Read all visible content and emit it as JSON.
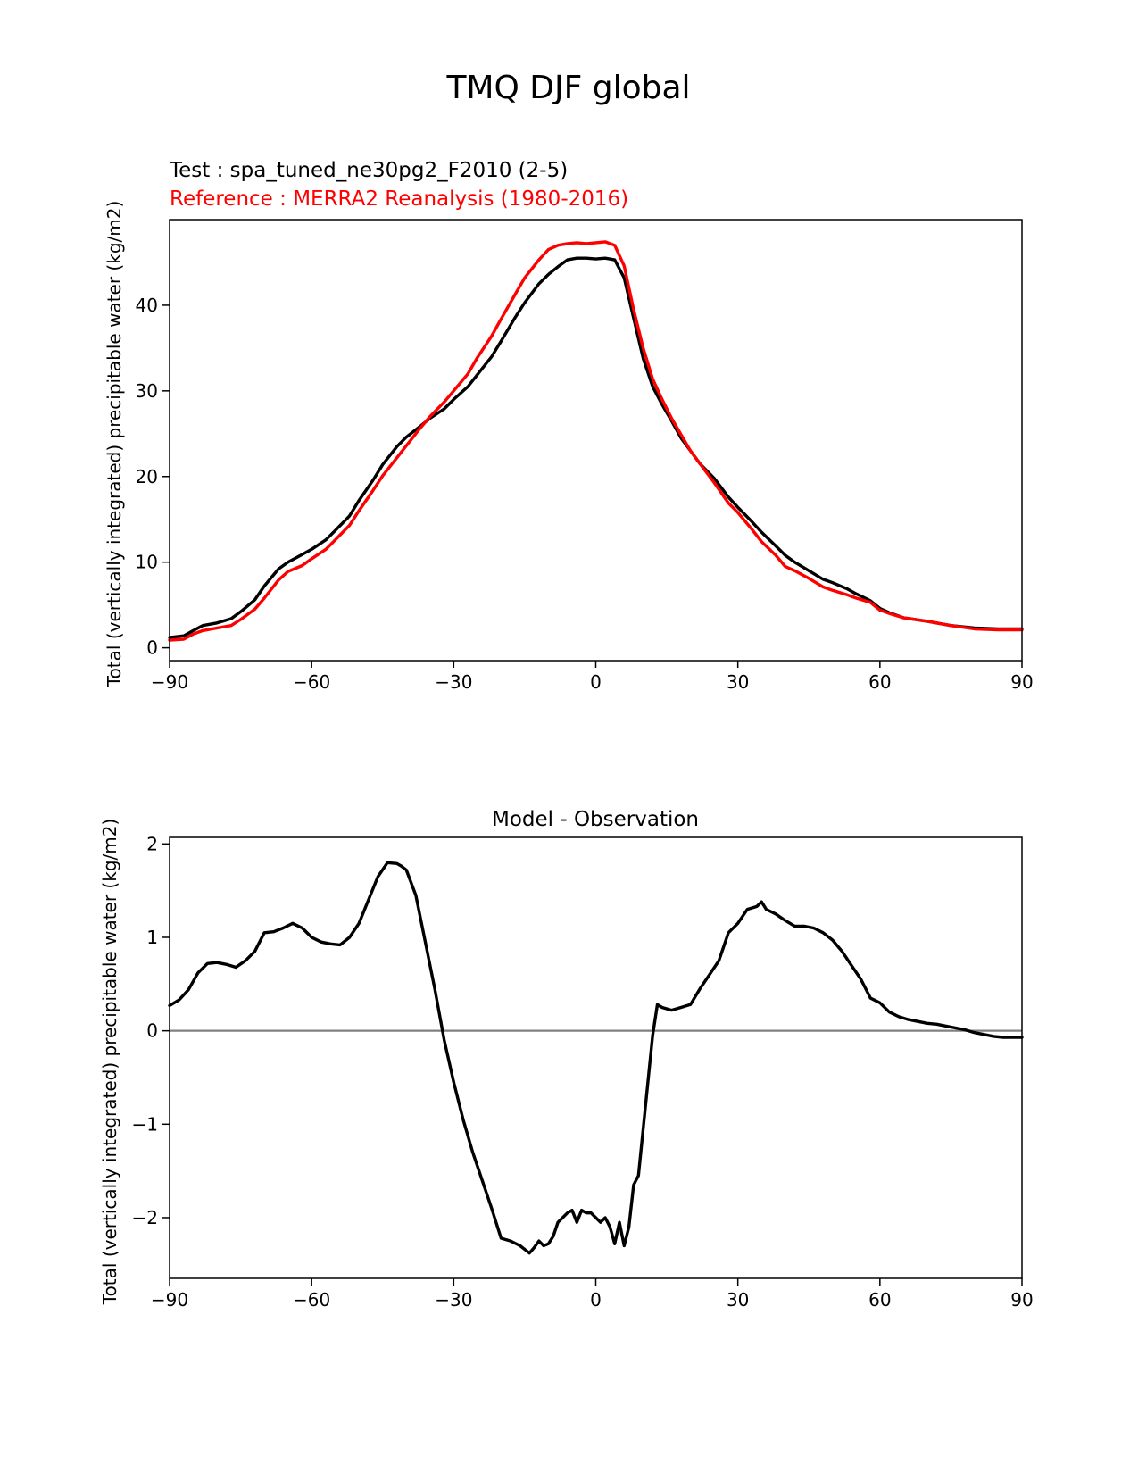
{
  "figure": {
    "title": "TMQ DJF global"
  },
  "chart_data": [
    {
      "type": "line",
      "title_test": "Test : spa_tuned_ne30pg2_F2010 (2-5)",
      "title_ref": "Reference : MERRA2 Reanalysis (1980-2016)",
      "ylabel": "Total (vertically integrated) precipitable water (kg/m2)",
      "xlim": [
        -90,
        90
      ],
      "ylim": [
        -1.5,
        50
      ],
      "xticks": [
        "−90",
        "−60",
        "−30",
        "0",
        "30",
        "60",
        "90"
      ],
      "xtick_values": [
        -90,
        -60,
        -30,
        0,
        30,
        60,
        90
      ],
      "yticks": [
        "0",
        "10",
        "20",
        "30",
        "40"
      ],
      "ytick_values": [
        0,
        10,
        20,
        30,
        40
      ],
      "colors": {
        "test": "#000000",
        "reference": "#ff0000"
      },
      "series": [
        {
          "role": "test",
          "x": [
            -90,
            -87,
            -85,
            -83,
            -80,
            -77,
            -75,
            -72,
            -70,
            -67,
            -65,
            -62,
            -60,
            -57,
            -55,
            -52,
            -50,
            -47,
            -45,
            -42,
            -40,
            -37,
            -35,
            -32,
            -30,
            -27,
            -25,
            -22,
            -20,
            -17,
            -15,
            -12,
            -10,
            -8,
            -6,
            -4,
            -2,
            0,
            2,
            4,
            6,
            8,
            10,
            12,
            14,
            16,
            18,
            20,
            22,
            25,
            28,
            30,
            33,
            35,
            38,
            40,
            42,
            45,
            48,
            50,
            53,
            55,
            58,
            60,
            62,
            65,
            70,
            75,
            80,
            85,
            90
          ],
          "y": [
            1.2,
            1.4,
            2.0,
            2.6,
            2.9,
            3.4,
            4.2,
            5.6,
            7.2,
            9.2,
            10.0,
            10.9,
            11.5,
            12.6,
            13.7,
            15.4,
            17.2,
            19.6,
            21.4,
            23.5,
            24.6,
            25.9,
            26.8,
            27.9,
            29.0,
            30.5,
            31.9,
            34.0,
            35.8,
            38.6,
            40.3,
            42.5,
            43.6,
            44.5,
            45.3,
            45.5,
            45.5,
            45.4,
            45.5,
            45.3,
            43.2,
            38.5,
            33.8,
            30.5,
            28.4,
            26.5,
            24.5,
            23.0,
            21.5,
            19.8,
            17.6,
            16.4,
            14.7,
            13.5,
            11.9,
            10.8,
            10.0,
            9.0,
            8.0,
            7.6,
            6.9,
            6.3,
            5.5,
            4.6,
            4.1,
            3.5,
            3.1,
            2.6,
            2.3,
            2.2,
            2.2
          ]
        },
        {
          "role": "reference",
          "x": [
            -90,
            -87,
            -85,
            -83,
            -80,
            -77,
            -75,
            -72,
            -70,
            -67,
            -65,
            -62,
            -60,
            -57,
            -55,
            -52,
            -50,
            -47,
            -45,
            -42,
            -40,
            -37,
            -35,
            -32,
            -30,
            -27,
            -25,
            -22,
            -20,
            -17,
            -15,
            -12,
            -10,
            -8,
            -6,
            -4,
            -2,
            0,
            2,
            4,
            6,
            8,
            10,
            12,
            14,
            16,
            18,
            20,
            22,
            25,
            28,
            30,
            33,
            35,
            38,
            40,
            42,
            45,
            48,
            50,
            53,
            55,
            58,
            60,
            62,
            65,
            70,
            75,
            80,
            85,
            90
          ],
          "y": [
            0.9,
            1.0,
            1.6,
            2.0,
            2.3,
            2.6,
            3.3,
            4.5,
            5.8,
            7.9,
            8.9,
            9.6,
            10.4,
            11.5,
            12.6,
            14.3,
            16.0,
            18.4,
            20.1,
            22.2,
            23.6,
            25.7,
            27.0,
            28.7,
            30.0,
            32.0,
            33.9,
            36.4,
            38.4,
            41.3,
            43.2,
            45.3,
            46.5,
            47.0,
            47.2,
            47.3,
            47.2,
            47.3,
            47.4,
            47.0,
            44.6,
            39.5,
            35.0,
            31.4,
            29.0,
            26.8,
            24.9,
            23.0,
            21.5,
            19.3,
            16.9,
            15.8,
            13.8,
            12.4,
            10.8,
            9.5,
            9.0,
            8.1,
            7.1,
            6.7,
            6.2,
            5.8,
            5.3,
            4.4,
            4.0,
            3.5,
            3.1,
            2.6,
            2.2,
            2.1,
            2.1
          ]
        }
      ]
    },
    {
      "type": "line",
      "title": "Model - Observation",
      "ylabel": "Total (vertically integrated) precipitable water (kg/m2)",
      "xlim": [
        -90,
        90
      ],
      "ylim": [
        -2.65,
        2.07
      ],
      "xticks": [
        "−90",
        "−60",
        "−30",
        "0",
        "30",
        "60",
        "90"
      ],
      "xtick_values": [
        -90,
        -60,
        -30,
        0,
        30,
        60,
        90
      ],
      "yticks": [
        "2",
        "1",
        "0",
        "−1",
        "−2"
      ],
      "ytick_values": [
        2,
        1,
        0,
        -1,
        -2
      ],
      "zero_line": 0,
      "colors": {
        "difference": "#000000",
        "zero_line": "#808080"
      },
      "series": [
        {
          "role": "difference",
          "x": [
            -90,
            -88,
            -86,
            -84,
            -82,
            -80,
            -78,
            -76,
            -74,
            -72,
            -70,
            -68,
            -66,
            -64,
            -62,
            -60,
            -58,
            -56,
            -54,
            -52,
            -50,
            -48,
            -46,
            -44,
            -42,
            -41,
            -40,
            -38,
            -36,
            -34,
            -32,
            -30,
            -28,
            -26,
            -24,
            -22,
            -20,
            -18,
            -16,
            -14,
            -13,
            -12,
            -11,
            -10,
            -9,
            -8,
            -7,
            -6,
            -5,
            -4,
            -3,
            -2,
            -1,
            0,
            1,
            2,
            3,
            4,
            5,
            6,
            7,
            8,
            9,
            10,
            11,
            12,
            13,
            14,
            16,
            18,
            20,
            22,
            24,
            26,
            28,
            30,
            32,
            34,
            35,
            36,
            38,
            40,
            42,
            44,
            46,
            48,
            50,
            52,
            54,
            56,
            58,
            60,
            62,
            64,
            66,
            68,
            70,
            72,
            74,
            76,
            78,
            80,
            82,
            84,
            86,
            88,
            90
          ],
          "y": [
            0.27,
            0.33,
            0.44,
            0.62,
            0.72,
            0.73,
            0.71,
            0.68,
            0.75,
            0.85,
            1.05,
            1.06,
            1.1,
            1.15,
            1.1,
            1.0,
            0.95,
            0.93,
            0.92,
            1.0,
            1.15,
            1.4,
            1.65,
            1.8,
            1.79,
            1.76,
            1.72,
            1.45,
            0.95,
            0.45,
            -0.1,
            -0.55,
            -0.95,
            -1.3,
            -1.6,
            -1.9,
            -2.22,
            -2.25,
            -2.3,
            -2.38,
            -2.32,
            -2.25,
            -2.3,
            -2.28,
            -2.2,
            -2.05,
            -2.0,
            -1.95,
            -1.92,
            -2.05,
            -1.92,
            -1.95,
            -1.95,
            -2.0,
            -2.05,
            -2.0,
            -2.1,
            -2.28,
            -2.05,
            -2.3,
            -2.1,
            -1.65,
            -1.55,
            -1.05,
            -0.55,
            -0.05,
            0.28,
            0.25,
            0.22,
            0.25,
            0.28,
            0.45,
            0.6,
            0.75,
            1.05,
            1.15,
            1.3,
            1.33,
            1.38,
            1.3,
            1.25,
            1.18,
            1.12,
            1.12,
            1.1,
            1.05,
            0.97,
            0.85,
            0.7,
            0.55,
            0.35,
            0.3,
            0.2,
            0.15,
            0.12,
            0.1,
            0.08,
            0.07,
            0.05,
            0.03,
            0.01,
            -0.02,
            -0.04,
            -0.06,
            -0.07,
            -0.07,
            -0.07
          ]
        }
      ]
    }
  ]
}
